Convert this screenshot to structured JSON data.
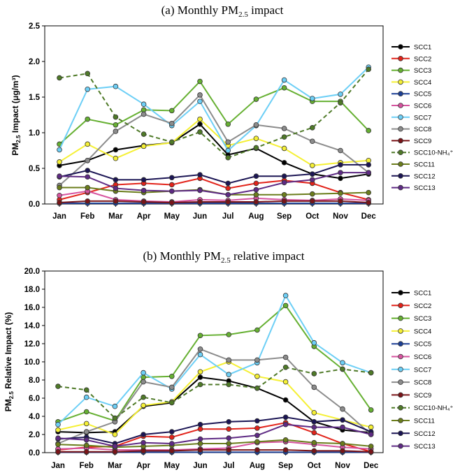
{
  "chart_data": [
    {
      "type": "line",
      "title": "(a) Monthly PM",
      "title_sub": "2.5",
      "title_suffix": " impact",
      "ylabel": "PM",
      "ylabel_sub": "2.5",
      "ylabel_suffix": " Impact (μg/m³)",
      "ylim": [
        0,
        2.5
      ],
      "yticks": [
        "0.0",
        "0.5",
        "1.0",
        "1.5",
        "2.0",
        "2.5"
      ],
      "categories": [
        "Jan",
        "Feb",
        "Mar",
        "Apr",
        "May",
        "Jun",
        "Jul",
        "Aug",
        "Sep",
        "Oct",
        "Nov",
        "Dec"
      ],
      "series": [
        {
          "name": "SCC1",
          "values": [
            0.54,
            0.61,
            0.76,
            0.82,
            0.86,
            1.12,
            0.69,
            0.78,
            0.58,
            0.42,
            0.36,
            0.42
          ]
        },
        {
          "name": "SCC2",
          "values": [
            0.06,
            0.16,
            0.27,
            0.29,
            0.27,
            0.36,
            0.22,
            0.29,
            0.33,
            0.29,
            0.16,
            0.06
          ]
        },
        {
          "name": "SCC3",
          "values": [
            0.84,
            1.19,
            1.11,
            1.32,
            1.31,
            1.72,
            1.12,
            1.47,
            1.63,
            1.44,
            1.44,
            1.03
          ]
        },
        {
          "name": "SCC4",
          "values": [
            0.59,
            0.84,
            0.64,
            0.81,
            0.86,
            1.19,
            0.82,
            0.92,
            0.78,
            0.54,
            0.58,
            0.61
          ]
        },
        {
          "name": "SCC5",
          "values": [
            0.01,
            0.01,
            0.01,
            0.01,
            0.01,
            0.01,
            0.01,
            0.01,
            0.01,
            0.01,
            0.01,
            0.01
          ]
        },
        {
          "name": "SCC6",
          "values": [
            0.12,
            0.18,
            0.06,
            0.04,
            0.03,
            0.06,
            0.05,
            0.08,
            0.06,
            0.05,
            0.07,
            0.05
          ]
        },
        {
          "name": "SCC7",
          "values": [
            0.76,
            1.61,
            1.65,
            1.4,
            1.1,
            1.44,
            0.75,
            1.1,
            1.74,
            1.48,
            1.54,
            1.92
          ]
        },
        {
          "name": "SCC8",
          "values": [
            0.26,
            0.61,
            1.02,
            1.26,
            1.13,
            1.53,
            0.87,
            1.11,
            1.06,
            0.88,
            0.75,
            0.44
          ]
        },
        {
          "name": "SCC9",
          "values": [
            0.02,
            0.04,
            0.04,
            0.03,
            0.02,
            0.03,
            0.03,
            0.03,
            0.04,
            0.04,
            0.04,
            0.02
          ]
        },
        {
          "name": "SCC10-NH₄⁺",
          "values": [
            1.77,
            1.83,
            1.22,
            0.98,
            0.87,
            1.01,
            0.65,
            0.79,
            0.94,
            1.07,
            1.42,
            1.89
          ]
        },
        {
          "name": "SCC11",
          "values": [
            0.23,
            0.23,
            0.18,
            0.16,
            0.18,
            0.2,
            0.13,
            0.13,
            0.13,
            0.14,
            0.15,
            0.16
          ]
        },
        {
          "name": "SCC12",
          "values": [
            0.38,
            0.47,
            0.34,
            0.34,
            0.37,
            0.41,
            0.29,
            0.39,
            0.39,
            0.42,
            0.55,
            0.55
          ]
        },
        {
          "name": "SCC13",
          "values": [
            0.39,
            0.38,
            0.22,
            0.19,
            0.18,
            0.19,
            0.13,
            0.2,
            0.3,
            0.34,
            0.44,
            0.44
          ]
        }
      ]
    },
    {
      "type": "line",
      "title": "(b) Monthly PM",
      "title_sub": "2.5",
      "title_suffix": " relative impact",
      "ylabel": "PM",
      "ylabel_sub": "2.5",
      "ylabel_suffix": " Relative Impact (%)",
      "ylim": [
        0,
        20
      ],
      "yticks": [
        "0.0",
        "2.0",
        "4.0",
        "6.0",
        "8.0",
        "10.0",
        "12.0",
        "14.0",
        "16.0",
        "18.0",
        "20.0"
      ],
      "categories": [
        "Jan",
        "Feb",
        "Mar",
        "Apr",
        "May",
        "Jun",
        "Jul",
        "Aug",
        "Sep",
        "Oct",
        "Nov",
        "Dec"
      ],
      "series": [
        {
          "name": "SCC1",
          "values": [
            2.3,
            2.2,
            2.3,
            5.1,
            5.5,
            8.3,
            7.9,
            7.1,
            5.8,
            3.4,
            2.5,
            2.2
          ]
        },
        {
          "name": "SCC2",
          "values": [
            0.3,
            0.6,
            0.7,
            1.8,
            1.7,
            2.6,
            2.6,
            2.7,
            3.3,
            2.2,
            1.0,
            0.1
          ]
        },
        {
          "name": "SCC3",
          "values": [
            3.4,
            4.5,
            3.5,
            8.3,
            8.4,
            12.9,
            13.0,
            13.5,
            16.2,
            11.7,
            9.2,
            4.7
          ]
        },
        {
          "name": "SCC4",
          "values": [
            2.5,
            3.2,
            2.0,
            5.2,
            5.6,
            8.9,
            10.0,
            8.4,
            7.8,
            4.4,
            3.6,
            2.8
          ]
        },
        {
          "name": "SCC5",
          "values": [
            0.05,
            0.05,
            0.05,
            0.05,
            0.05,
            0.05,
            0.05,
            0.05,
            0.05,
            0.05,
            0.05,
            0.05
          ]
        },
        {
          "name": "SCC6",
          "values": [
            0.4,
            0.5,
            0.3,
            0.3,
            0.3,
            0.4,
            0.5,
            1.1,
            1.2,
            0.9,
            0.6,
            0.4
          ]
        },
        {
          "name": "SCC7",
          "values": [
            3.1,
            6.1,
            5.1,
            8.8,
            7.0,
            10.8,
            8.6,
            9.9,
            17.3,
            12.1,
            9.9,
            8.8
          ]
        },
        {
          "name": "SCC8",
          "values": [
            1.0,
            2.3,
            3.4,
            7.8,
            7.2,
            11.4,
            10.2,
            10.2,
            10.5,
            7.2,
            4.8,
            2.0
          ]
        },
        {
          "name": "SCC9",
          "values": [
            0.1,
            0.1,
            0.1,
            0.2,
            0.2,
            0.3,
            0.3,
            0.3,
            0.3,
            0.2,
            0.2,
            0.1
          ]
        },
        {
          "name": "SCC10-NH₄⁺",
          "values": [
            7.3,
            6.9,
            3.8,
            6.1,
            5.5,
            7.5,
            7.5,
            7.1,
            9.4,
            8.7,
            9.2,
            8.8
          ]
        },
        {
          "name": "SCC11",
          "values": [
            0.9,
            0.8,
            0.6,
            0.7,
            0.8,
            1.0,
            1.0,
            1.2,
            1.4,
            1.1,
            1.0,
            0.7
          ]
        },
        {
          "name": "SCC12",
          "values": [
            1.5,
            1.7,
            1.0,
            2.0,
            2.3,
            3.1,
            3.4,
            3.5,
            3.9,
            3.4,
            3.6,
            2.3
          ]
        },
        {
          "name": "SCC13",
          "values": [
            1.6,
            1.4,
            0.7,
            1.1,
            1.0,
            1.5,
            1.6,
            1.9,
            3.1,
            2.8,
            2.8,
            2.0
          ]
        }
      ]
    }
  ],
  "series_colors": [
    "#000000",
    "#e2231a",
    "#66b032",
    "#f5f035",
    "#1c3f95",
    "#d6549f",
    "#6dcff6",
    "#8c8c8c",
    "#7a1418",
    "#4f7a28",
    "#6b7d1c",
    "#1b1554",
    "#5e2a84"
  ],
  "dashed_series": "SCC10-NH₄⁺"
}
